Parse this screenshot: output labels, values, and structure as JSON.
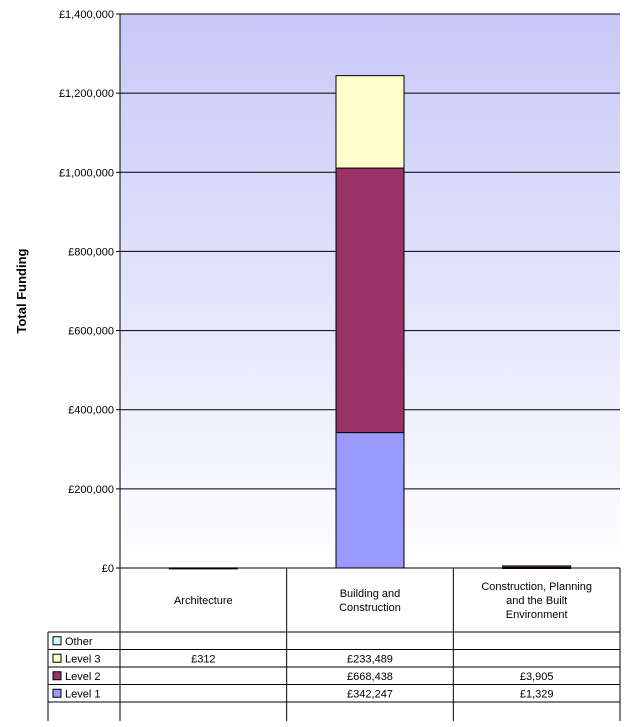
{
  "chart_data": {
    "type": "bar",
    "stacked": true,
    "ylabel": "Total Funding",
    "ylim": [
      0,
      1400000
    ],
    "y_ticks": [
      "£0",
      "£200,000",
      "£400,000",
      "£600,000",
      "£800,000",
      "£1,000,000",
      "£1,200,000",
      "£1,400,000"
    ],
    "categories": [
      [
        "Architecture"
      ],
      [
        "Building and",
        "Construction"
      ],
      [
        "Construction, Planning",
        "and the Built",
        "Environment"
      ]
    ],
    "series": [
      {
        "name": "Level 1",
        "color": "#9999ff",
        "values": [
          0,
          342247,
          1329
        ],
        "labels": [
          "",
          "£342,247",
          "£1,329"
        ]
      },
      {
        "name": "Level 2",
        "color": "#993366",
        "values": [
          0,
          668438,
          3905
        ],
        "labels": [
          "",
          "£668,438",
          "£3,905"
        ]
      },
      {
        "name": "Level 3",
        "color": "#ffffcc",
        "values": [
          312,
          233489,
          0
        ],
        "labels": [
          "£312",
          "£233,489",
          ""
        ]
      },
      {
        "name": "Other",
        "color": "#ccffff",
        "values": [
          0,
          0,
          0
        ],
        "labels": [
          "",
          "",
          ""
        ]
      }
    ],
    "table_rows_order": [
      "Other",
      "Level 3",
      "Level 2",
      "Level 1"
    ],
    "grid": true,
    "legend": "data-table"
  }
}
